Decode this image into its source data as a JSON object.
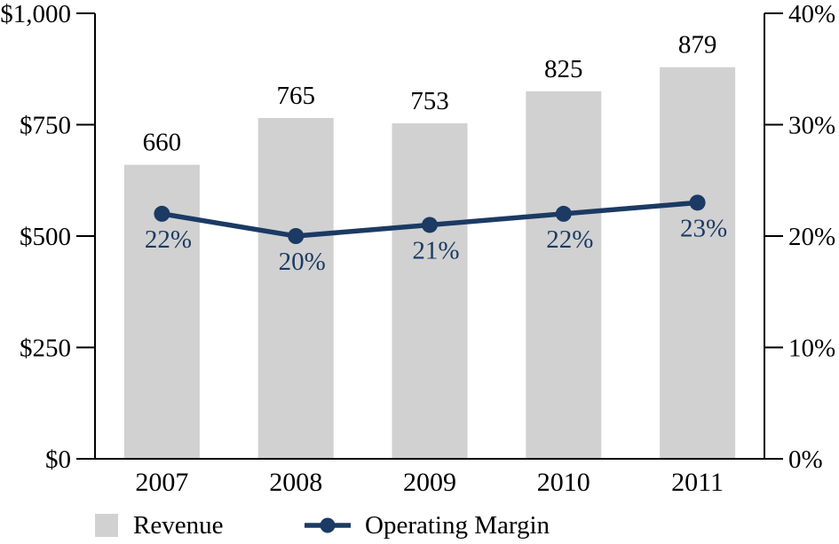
{
  "colors": {
    "bar": "#d1d1d1",
    "line": "#1b3a64",
    "axis": "#000000",
    "bar_label": "#000000",
    "pct_label": "#1b3a64",
    "year_label": "#000000",
    "background": "#ffffff"
  },
  "chart_data": {
    "type": "bar",
    "subtype": "bar+line combo",
    "categories": [
      "2007",
      "2008",
      "2009",
      "2010",
      "2011"
    ],
    "series": [
      {
        "name": "Revenue",
        "type": "bar",
        "axis": "left",
        "values": [
          660,
          765,
          753,
          825,
          879
        ],
        "labels": [
          "660",
          "765",
          "753",
          "825",
          "879"
        ]
      },
      {
        "name": "Operating Margin",
        "type": "line",
        "axis": "right",
        "values": [
          22,
          20,
          21,
          22,
          23
        ],
        "labels": [
          "22%",
          "20%",
          "21%",
          "22%",
          "23%"
        ]
      }
    ],
    "title": "",
    "xlabel": "",
    "ylabel_left": "",
    "ylabel_right": "",
    "left_axis": {
      "range": [
        0,
        1000
      ],
      "ticks": [
        0,
        250,
        500,
        750,
        1000
      ],
      "tick_labels": [
        "$0",
        "$250",
        "$500",
        "$750",
        "$1,000"
      ]
    },
    "right_axis": {
      "range": [
        0,
        40
      ],
      "ticks": [
        0,
        10,
        20,
        30,
        40
      ],
      "tick_labels": [
        "0%",
        "10%",
        "20%",
        "30%",
        "40%"
      ]
    },
    "grid": false,
    "legend_position": "bottom"
  },
  "legend": {
    "revenue_label": "Revenue",
    "margin_label": "Operating Margin"
  }
}
